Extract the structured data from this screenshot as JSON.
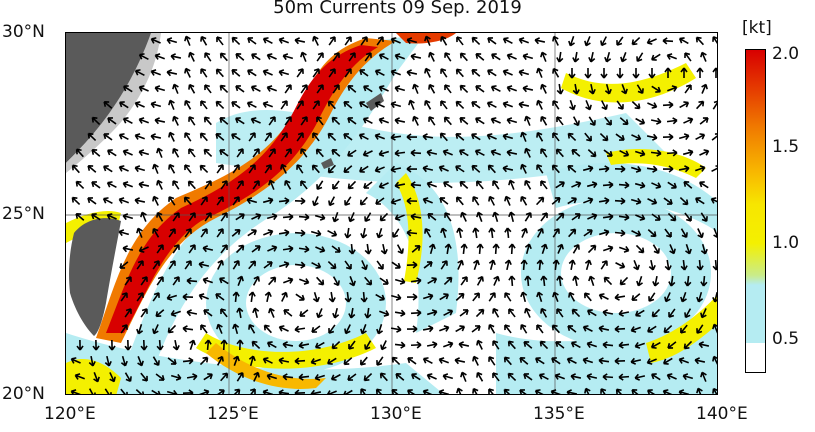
{
  "title": "50m Currents  09 Sep. 2019",
  "lat_labels": [
    "30°N",
    "25°N",
    "20°N"
  ],
  "lon_labels": [
    "120°E",
    "125°E",
    "130°E",
    "135°E",
    "140°E"
  ],
  "colorbar": {
    "unit": "[kt]",
    "labels": [
      "2.0",
      "1.5",
      "1.0",
      "0.5"
    ],
    "colors": [
      "#ffffff",
      "#b5ecf2",
      "#f4f000",
      "#f8b800",
      "#e53b00",
      "#d80000"
    ]
  },
  "colors": {
    "land": "#5a5a5a",
    "shelf": "#c8c8c8",
    "slow": "#b5ecf2",
    "mid": "#f4f000",
    "fast": "#d80000",
    "arrow": "#000000"
  }
}
